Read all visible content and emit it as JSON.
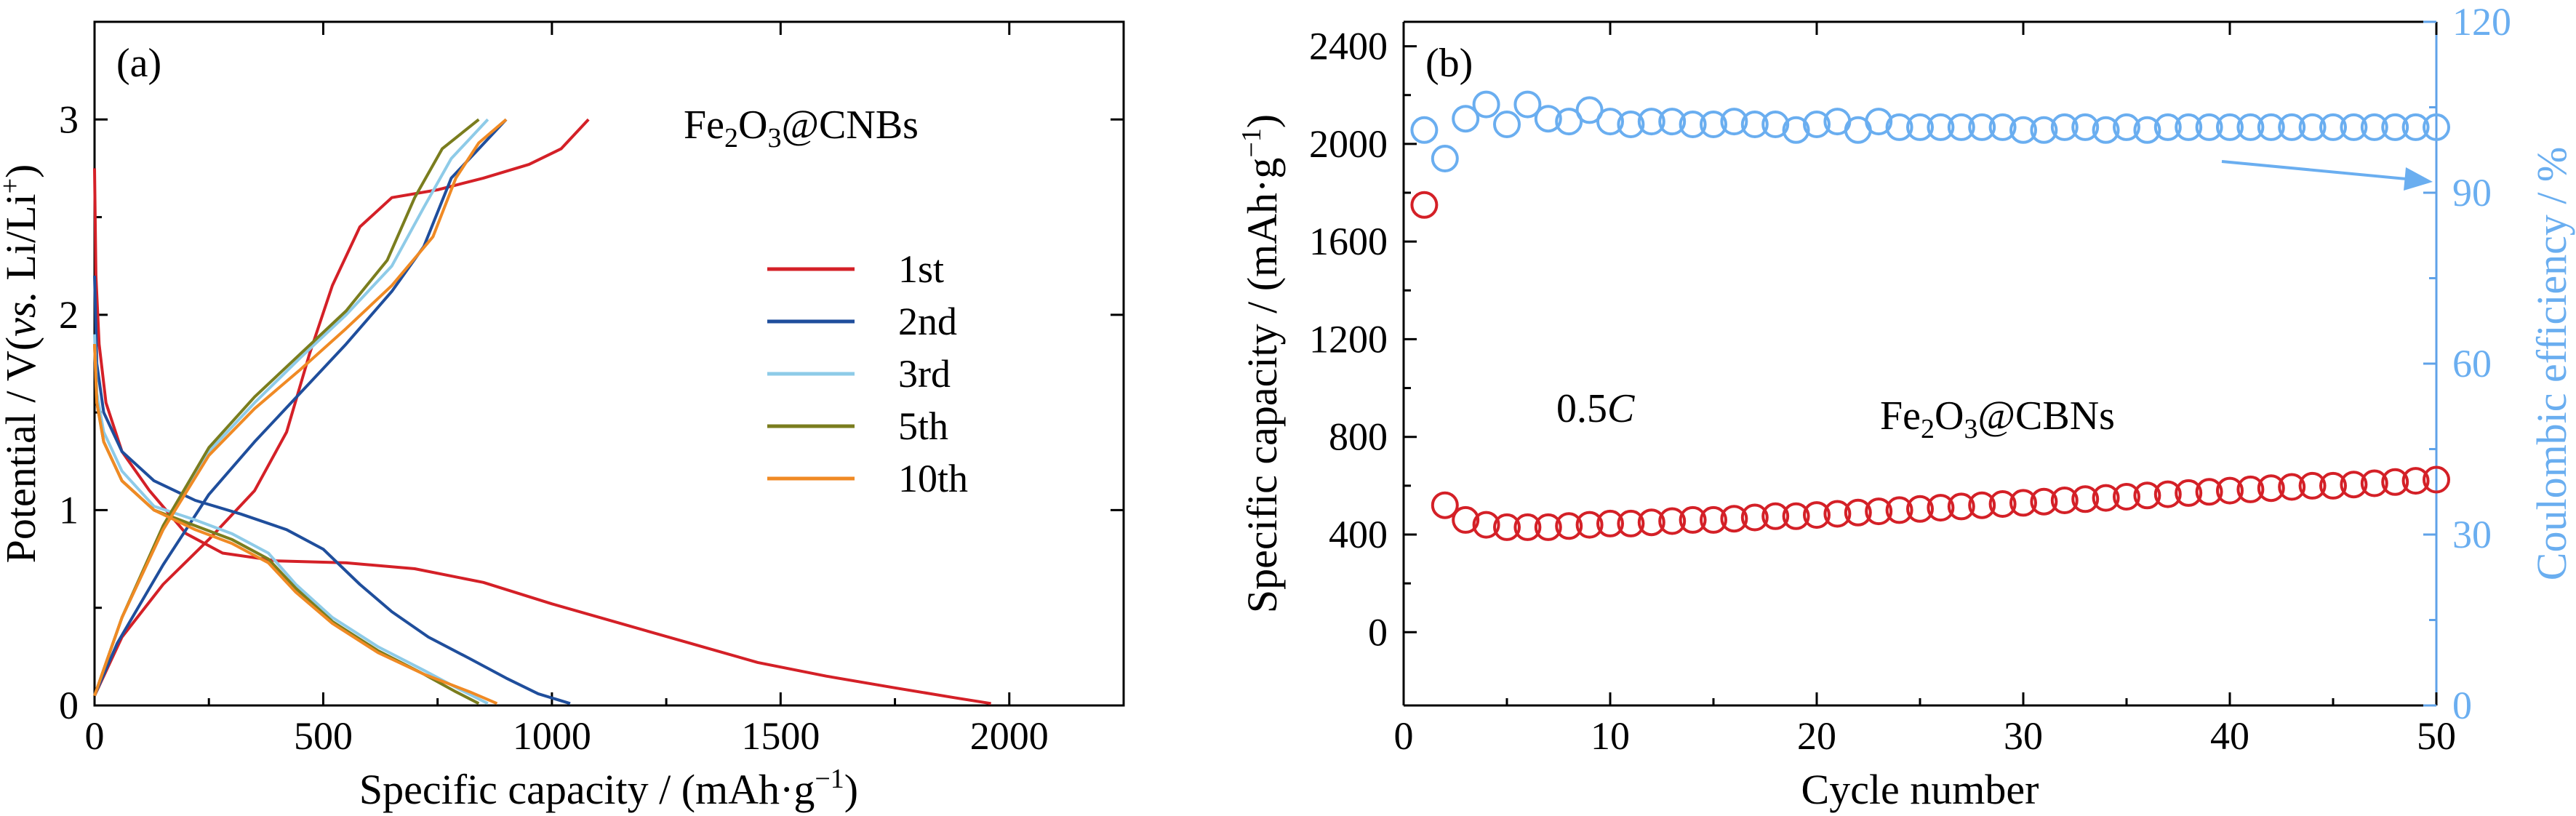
{
  "chart_data": [
    {
      "type": "line",
      "panel_label": "(a)",
      "annotation": {
        "main": "Fe",
        "sub1": "2",
        "mid": "O",
        "sub2": "3",
        "tail": "@CNBs"
      },
      "xlabel": {
        "main": "Specific capacity / (mAh·g",
        "sup": "−1",
        "tail": ")"
      },
      "ylabel": {
        "a": "Potential / V(",
        "b": "vs.",
        "c": " Li/Li",
        "sup": "+",
        "d": ")"
      },
      "xlim": [
        0,
        2250
      ],
      "ylim": [
        0,
        3.5
      ],
      "xticks": [
        0,
        500,
        1000,
        1500,
        2000
      ],
      "yticks": [
        0,
        1,
        2,
        3
      ],
      "series": [
        {
          "name": "1st",
          "color": "#d42027",
          "discharge": [
            [
              0,
              2.75
            ],
            [
              3,
              2.2
            ],
            [
              10,
              1.85
            ],
            [
              25,
              1.55
            ],
            [
              60,
              1.3
            ],
            [
              120,
              1.1
            ],
            [
              200,
              0.88
            ],
            [
              280,
              0.78
            ],
            [
              400,
              0.74
            ],
            [
              550,
              0.73
            ],
            [
              700,
              0.7
            ],
            [
              850,
              0.63
            ],
            [
              1000,
              0.52
            ],
            [
              1150,
              0.42
            ],
            [
              1300,
              0.32
            ],
            [
              1450,
              0.22
            ],
            [
              1600,
              0.15
            ],
            [
              1750,
              0.09
            ],
            [
              1880,
              0.04
            ],
            [
              1960,
              0.01
            ]
          ],
          "charge": [
            [
              0,
              0.05
            ],
            [
              60,
              0.35
            ],
            [
              150,
              0.62
            ],
            [
              250,
              0.85
            ],
            [
              350,
              1.1
            ],
            [
              420,
              1.4
            ],
            [
              470,
              1.8
            ],
            [
              520,
              2.15
            ],
            [
              580,
              2.45
            ],
            [
              650,
              2.6
            ],
            [
              750,
              2.64
            ],
            [
              850,
              2.7
            ],
            [
              950,
              2.77
            ],
            [
              1020,
              2.85
            ],
            [
              1080,
              3.0
            ]
          ]
        },
        {
          "name": "2nd",
          "color": "#1f4e9c",
          "discharge": [
            [
              0,
              2.2
            ],
            [
              5,
              1.75
            ],
            [
              20,
              1.5
            ],
            [
              60,
              1.3
            ],
            [
              130,
              1.15
            ],
            [
              220,
              1.05
            ],
            [
              320,
              0.98
            ],
            [
              420,
              0.9
            ],
            [
              500,
              0.8
            ],
            [
              580,
              0.62
            ],
            [
              650,
              0.48
            ],
            [
              730,
              0.35
            ],
            [
              820,
              0.24
            ],
            [
              900,
              0.14
            ],
            [
              970,
              0.06
            ],
            [
              1040,
              0.01
            ]
          ],
          "charge": [
            [
              0,
              0.05
            ],
            [
              50,
              0.32
            ],
            [
              150,
              0.72
            ],
            [
              250,
              1.08
            ],
            [
              350,
              1.35
            ],
            [
              450,
              1.6
            ],
            [
              550,
              1.85
            ],
            [
              650,
              2.12
            ],
            [
              720,
              2.35
            ],
            [
              780,
              2.7
            ],
            [
              840,
              2.85
            ],
            [
              900,
              3.0
            ]
          ]
        },
        {
          "name": "3rd",
          "color": "#8ecbe8",
          "discharge": [
            [
              0,
              1.9
            ],
            [
              5,
              1.6
            ],
            [
              20,
              1.4
            ],
            [
              60,
              1.2
            ],
            [
              130,
              1.02
            ],
            [
              220,
              0.95
            ],
            [
              300,
              0.88
            ],
            [
              380,
              0.78
            ],
            [
              440,
              0.62
            ],
            [
              520,
              0.45
            ],
            [
              620,
              0.3
            ],
            [
              720,
              0.18
            ],
            [
              800,
              0.08
            ],
            [
              860,
              0.01
            ]
          ],
          "charge": [
            [
              0,
              0.05
            ],
            [
              60,
              0.45
            ],
            [
              150,
              0.9
            ],
            [
              250,
              1.3
            ],
            [
              350,
              1.55
            ],
            [
              450,
              1.78
            ],
            [
              550,
              2.0
            ],
            [
              650,
              2.25
            ],
            [
              720,
              2.55
            ],
            [
              780,
              2.8
            ],
            [
              860,
              3.0
            ]
          ]
        },
        {
          "name": "5th",
          "color": "#7a7d1e",
          "discharge": [
            [
              0,
              1.85
            ],
            [
              5,
              1.55
            ],
            [
              20,
              1.35
            ],
            [
              60,
              1.15
            ],
            [
              130,
              1.0
            ],
            [
              220,
              0.92
            ],
            [
              300,
              0.85
            ],
            [
              380,
              0.75
            ],
            [
              440,
              0.6
            ],
            [
              520,
              0.43
            ],
            [
              620,
              0.28
            ],
            [
              720,
              0.16
            ],
            [
              790,
              0.07
            ],
            [
              840,
              0.01
            ]
          ],
          "charge": [
            [
              0,
              0.05
            ],
            [
              60,
              0.45
            ],
            [
              150,
              0.92
            ],
            [
              250,
              1.32
            ],
            [
              350,
              1.58
            ],
            [
              450,
              1.8
            ],
            [
              550,
              2.02
            ],
            [
              640,
              2.28
            ],
            [
              700,
              2.6
            ],
            [
              760,
              2.85
            ],
            [
              840,
              3.0
            ]
          ]
        },
        {
          "name": "10th",
          "color": "#f08a24",
          "discharge": [
            [
              0,
              1.85
            ],
            [
              5,
              1.55
            ],
            [
              20,
              1.35
            ],
            [
              60,
              1.15
            ],
            [
              130,
              1.0
            ],
            [
              220,
              0.9
            ],
            [
              300,
              0.83
            ],
            [
              380,
              0.73
            ],
            [
              440,
              0.58
            ],
            [
              520,
              0.42
            ],
            [
              620,
              0.27
            ],
            [
              720,
              0.16
            ],
            [
              820,
              0.07
            ],
            [
              880,
              0.01
            ]
          ],
          "charge": [
            [
              0,
              0.05
            ],
            [
              60,
              0.45
            ],
            [
              150,
              0.9
            ],
            [
              250,
              1.28
            ],
            [
              350,
              1.52
            ],
            [
              450,
              1.72
            ],
            [
              550,
              1.93
            ],
            [
              650,
              2.15
            ],
            [
              740,
              2.4
            ],
            [
              790,
              2.7
            ],
            [
              840,
              2.88
            ],
            [
              900,
              3.0
            ]
          ]
        }
      ]
    },
    {
      "type": "scatter",
      "panel_label": "(b)",
      "rate": {
        "num": "0.5",
        "unit": "C"
      },
      "annotation": {
        "main": "Fe",
        "sub1": "2",
        "mid": "O",
        "sub2": "3",
        "tail": "@CBNs"
      },
      "xlabel": "Cycle number",
      "ylabel_left": {
        "main": "Specific capacity / (mAh·g",
        "sup": "−1",
        "tail": ")"
      },
      "ylabel_right": "Coulombic efficiency / %",
      "xlim": [
        0,
        50
      ],
      "ylim_left": [
        -300,
        2500
      ],
      "ylim_right": [
        0,
        120
      ],
      "xticks": [
        0,
        10,
        20,
        30,
        40,
        50
      ],
      "yticks_left": [
        0,
        400,
        800,
        1200,
        1600,
        2000,
        2400
      ],
      "yticks_right": [
        0,
        30,
        60,
        90,
        120
      ],
      "series": [
        {
          "name": "Specific capacity",
          "axis": "left",
          "color": "#d42027",
          "x": [
            1,
            2,
            3,
            4,
            5,
            6,
            7,
            8,
            9,
            10,
            11,
            12,
            13,
            14,
            15,
            16,
            17,
            18,
            19,
            20,
            21,
            22,
            23,
            24,
            25,
            26,
            27,
            28,
            29,
            30,
            31,
            32,
            33,
            34,
            35,
            36,
            37,
            38,
            39,
            40,
            41,
            42,
            43,
            44,
            45,
            46,
            47,
            48,
            49,
            50
          ],
          "y": [
            1750,
            520,
            460,
            440,
            430,
            430,
            430,
            435,
            440,
            445,
            445,
            450,
            455,
            460,
            460,
            465,
            470,
            475,
            475,
            480,
            485,
            490,
            495,
            500,
            505,
            510,
            515,
            520,
            525,
            530,
            535,
            540,
            545,
            550,
            555,
            560,
            565,
            570,
            575,
            580,
            585,
            590,
            595,
            600,
            600,
            605,
            610,
            615,
            620,
            625
          ]
        },
        {
          "name": "Coulombic efficiency",
          "axis": "right",
          "color": "#6aaef0",
          "x": [
            1,
            2,
            3,
            4,
            5,
            6,
            7,
            8,
            9,
            10,
            11,
            12,
            13,
            14,
            15,
            16,
            17,
            18,
            19,
            20,
            21,
            22,
            23,
            24,
            25,
            26,
            27,
            28,
            29,
            30,
            31,
            32,
            33,
            34,
            35,
            36,
            37,
            38,
            39,
            40,
            41,
            42,
            43,
            44,
            45,
            46,
            47,
            48,
            49,
            50
          ],
          "y": [
            101,
            96,
            103,
            105.5,
            102,
            105.5,
            103,
            102.5,
            104.5,
            102.5,
            102,
            102.5,
            102.5,
            102,
            102,
            102.5,
            102,
            102,
            101,
            102,
            102.5,
            101,
            102.5,
            101.5,
            101.5,
            101.5,
            101.5,
            101.5,
            101.5,
            101,
            101,
            101.5,
            101.5,
            101,
            101.5,
            101,
            101.5,
            101.5,
            101.5,
            101.5,
            101.5,
            101.5,
            101.5,
            101.5,
            101.5,
            101.5,
            101.5,
            101.5,
            101.5,
            101.5
          ]
        }
      ]
    }
  ]
}
